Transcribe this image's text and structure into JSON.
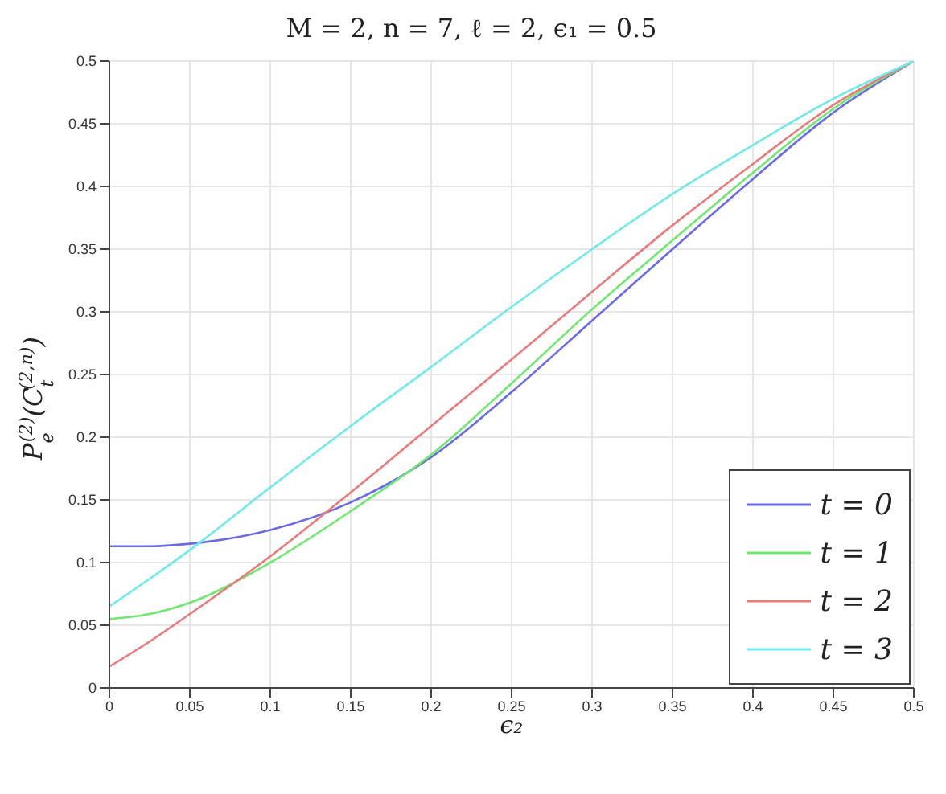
{
  "chart_data": {
    "type": "line",
    "title": "M = 2, n = 7, ℓ = 2, ϵ₁ = 0.5",
    "xlabel": "ϵ₂",
    "ylabel": "P$_{e}$$^{(2)}$(C$_{t}$$^{(2,n)}$)",
    "x": [
      0,
      0.025,
      0.05,
      0.1,
      0.15,
      0.2,
      0.25,
      0.3,
      0.35,
      0.4,
      0.45,
      0.5
    ],
    "series": [
      {
        "name": "t = 0",
        "color": "#6a6ae8",
        "values": [
          0.113,
          0.113,
          0.115,
          0.126,
          0.148,
          0.184,
          0.236,
          0.293,
          0.35,
          0.406,
          0.459,
          0.5
        ]
      },
      {
        "name": "t = 1",
        "color": "#6ee86e",
        "values": [
          0.055,
          0.059,
          0.068,
          0.1,
          0.141,
          0.186,
          0.243,
          0.302,
          0.357,
          0.411,
          0.462,
          0.5
        ]
      },
      {
        "name": "t = 2",
        "color": "#ec7a7a",
        "values": [
          0.017,
          0.037,
          0.059,
          0.105,
          0.156,
          0.209,
          0.262,
          0.316,
          0.369,
          0.418,
          0.465,
          0.5
        ]
      },
      {
        "name": "t = 3",
        "color": "#6eeaea",
        "values": [
          0.065,
          0.087,
          0.11,
          0.16,
          0.209,
          0.256,
          0.304,
          0.35,
          0.394,
          0.433,
          0.47,
          0.5
        ]
      }
    ],
    "xlim": [
      0,
      0.5
    ],
    "ylim": [
      0,
      0.5
    ],
    "xticks": [
      0,
      0.05,
      0.1,
      0.15,
      0.2,
      0.25,
      0.3,
      0.35,
      0.4,
      0.45,
      0.5
    ],
    "yticks": [
      0,
      0.05,
      0.1,
      0.15,
      0.2,
      0.25,
      0.3,
      0.35,
      0.4,
      0.45,
      0.5
    ],
    "grid": true,
    "legend": "bottom right",
    "marker": "none",
    "line_style": "solid"
  }
}
